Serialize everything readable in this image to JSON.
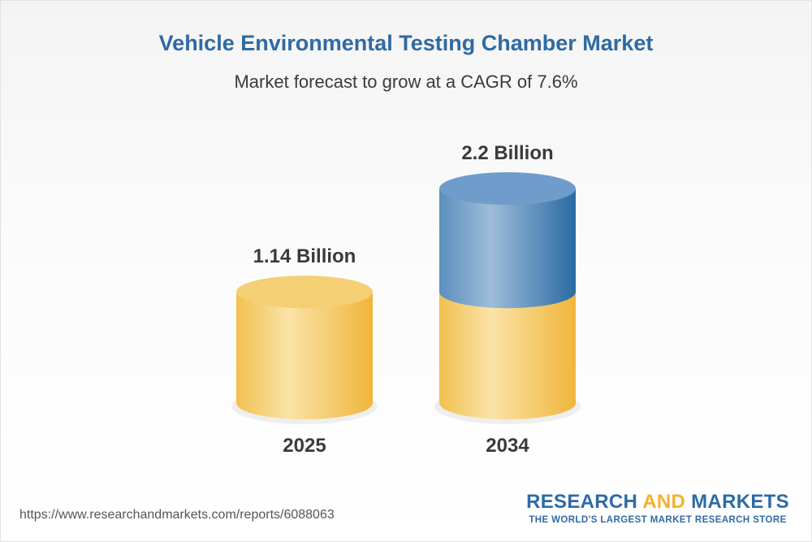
{
  "header": {
    "title": "Vehicle Environmental Testing Chamber Market",
    "subtitle": "Market forecast to grow at a CAGR of 7.6%"
  },
  "chart_data": {
    "type": "bar",
    "categories": [
      "2025",
      "2034"
    ],
    "values": [
      1.14,
      2.2
    ],
    "value_labels": [
      "1.14 Billion",
      "2.2 Billion"
    ],
    "unit": "Billion",
    "title": "Vehicle Environmental Testing Chamber Market",
    "subtitle": "Market forecast to grow at a CAGR of 7.6%",
    "cagr": "7.6%",
    "xlabel": "",
    "ylabel": "",
    "grid": false,
    "legend": "none",
    "colors": {
      "base": "#f2c04f",
      "base_light": "#fae3a8",
      "base_top": "#f5cf73",
      "growth": "#5b8fbe",
      "growth_light": "#9dbcd9",
      "growth_top": "#6f9ccb",
      "growth_dark": "#2a6aa3"
    }
  },
  "footer": {
    "source_url": "https://www.researchandmarkets.com/reports/6088063"
  },
  "logo": {
    "word1": "RESEARCH",
    "word2": "AND",
    "word3": "MARKETS",
    "tagline": "THE WORLD'S LARGEST MARKET RESEARCH STORE"
  }
}
